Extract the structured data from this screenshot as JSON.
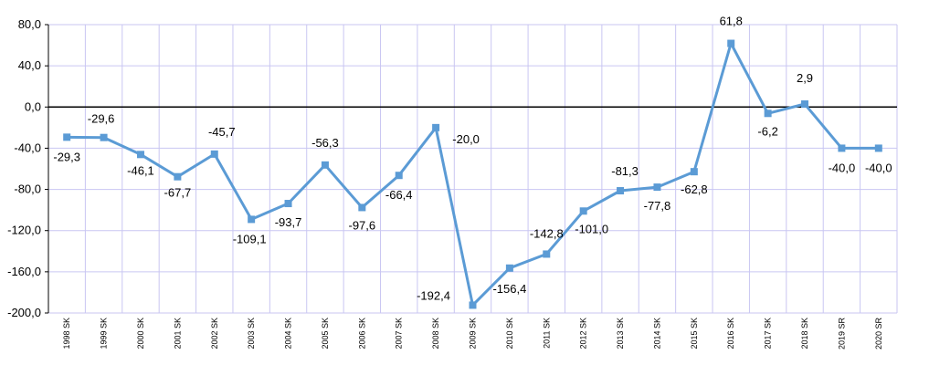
{
  "chart_data": {
    "type": "line",
    "categories": [
      "1998 SK",
      "1999 SK",
      "2000 SK",
      "2001 SK",
      "2002 SK",
      "2003 SK",
      "2004 SK",
      "2005 SK",
      "2006 SK",
      "2007 SK",
      "2008 SK",
      "2009 SK",
      "2010 SK",
      "2011 SK",
      "2012 SK",
      "2013 SK",
      "2014 SK",
      "2015 SK",
      "2016 SK",
      "2017 SK",
      "2018 SK",
      "2019 SR",
      "2020 SR"
    ],
    "values": [
      -29.3,
      -29.6,
      -46.1,
      -67.7,
      -45.7,
      -109.1,
      -93.7,
      -56.3,
      -97.6,
      -66.4,
      -20.0,
      -192.4,
      -156.4,
      -142.8,
      -101.0,
      -81.3,
      -77.8,
      -62.8,
      61.8,
      -6.2,
      2.9,
      -40.0,
      -40.0
    ],
    "data_labels": [
      "-29,3",
      "-29,6",
      "-46,1",
      "-67,7",
      "-45,7",
      "-109,1",
      "-93,7",
      "-56,3",
      "-97,6",
      "-66,4",
      "-20,0",
      "-192,4",
      "-156,4",
      "-142,8",
      "-101,0",
      "-81,3",
      "-77,8",
      "-62,8",
      "61,8",
      "-6,2",
      "2,9",
      "-40,0",
      "-40,0"
    ],
    "ylim": [
      -200,
      80
    ],
    "yticks": [
      80,
      40,
      0,
      -40,
      -80,
      -120,
      -160,
      -200
    ],
    "ytick_labels": [
      "80,0",
      "40,0",
      "0,0",
      "-40,0",
      "-80,0",
      "-120,0",
      "-160,0",
      "-200,0"
    ],
    "title": "",
    "xlabel": "",
    "ylabel": "",
    "grid": true,
    "colors": {
      "line": "#5b9bd5",
      "marker": "#5b9bd5",
      "grid": "#c9c6f2",
      "zero_line": "#000000",
      "axis": "#000000"
    }
  }
}
